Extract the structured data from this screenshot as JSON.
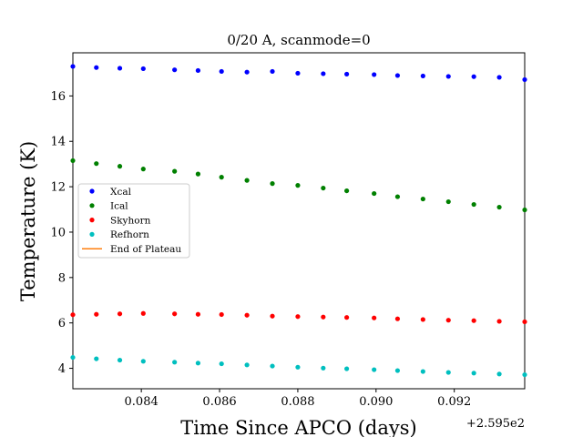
{
  "chart_data": {
    "type": "scatter",
    "title": "0/20 A, scanmode=0",
    "xlabel": "Time Since APCO (days)",
    "ylabel": "Temperature (K)",
    "x_offset_label": "+2.595e2",
    "xlim": [
      259.58225,
      259.5938
    ],
    "ylim": [
      3.1,
      17.9
    ],
    "xticks": [
      259.584,
      259.586,
      259.588,
      259.59,
      259.592
    ],
    "xtick_labels": [
      "0.084",
      "0.086",
      "0.088",
      "0.090",
      "0.092"
    ],
    "yticks": [
      4,
      6,
      8,
      10,
      12,
      14,
      16
    ],
    "ytick_labels": [
      "4",
      "6",
      "8",
      "10",
      "12",
      "14",
      "16"
    ],
    "grid": false,
    "legend_position": "center-left",
    "x": [
      259.58225,
      259.58285,
      259.58345,
      259.58405,
      259.58485,
      259.58545,
      259.58605,
      259.5867,
      259.58735,
      259.588,
      259.58865,
      259.58925,
      259.58995,
      259.59055,
      259.5912,
      259.59185,
      259.5925,
      259.59315,
      259.5938
    ],
    "series": [
      {
        "name": "Xcal",
        "color": "#0000ff",
        "values": [
          17.3,
          17.25,
          17.22,
          17.2,
          17.15,
          17.12,
          17.08,
          17.05,
          17.08,
          17.0,
          16.98,
          16.96,
          16.94,
          16.9,
          16.88,
          16.86,
          16.85,
          16.82,
          16.72
        ]
      },
      {
        "name": "Ical",
        "color": "#008000",
        "values": [
          13.15,
          13.02,
          12.9,
          12.78,
          12.68,
          12.56,
          12.42,
          12.28,
          12.14,
          12.06,
          11.94,
          11.82,
          11.7,
          11.56,
          11.46,
          11.34,
          11.22,
          11.1,
          10.98
        ]
      },
      {
        "name": "Skyhorn",
        "color": "#ff0000",
        "values": [
          6.36,
          6.38,
          6.4,
          6.42,
          6.4,
          6.38,
          6.37,
          6.34,
          6.3,
          6.28,
          6.26,
          6.24,
          6.22,
          6.18,
          6.15,
          6.12,
          6.1,
          6.07,
          6.05
        ]
      },
      {
        "name": "Refhorn",
        "color": "#00bfbf",
        "values": [
          4.48,
          4.42,
          4.36,
          4.31,
          4.27,
          4.23,
          4.2,
          4.15,
          4.1,
          4.05,
          4.01,
          3.98,
          3.94,
          3.9,
          3.86,
          3.82,
          3.79,
          3.75,
          3.72
        ]
      }
    ],
    "lines": [
      {
        "name": "End of Plateau",
        "color": "#ff7f0e"
      }
    ]
  }
}
